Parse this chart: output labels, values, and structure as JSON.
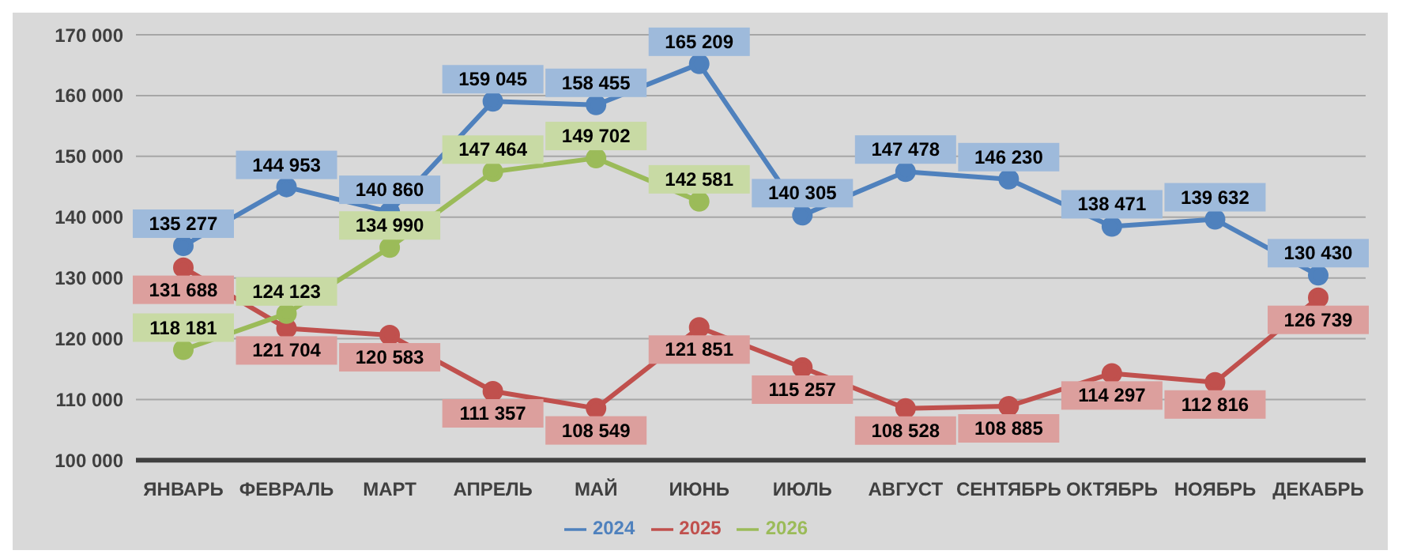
{
  "chart_data": {
    "type": "line",
    "categories": [
      "ЯНВАРЬ",
      "ФЕВРАЛЬ",
      "МАРТ",
      "АПРЕЛЬ",
      "МАЙ",
      "ИЮНЬ",
      "ИЮЛЬ",
      "АВГУСТ",
      "СЕНТЯБРЬ",
      "ОКТЯБРЬ",
      "НОЯБРЬ",
      "ДЕКАБРЬ"
    ],
    "series": [
      {
        "name": "2024",
        "color": "#4f81bd",
        "values": [
          135277,
          144953,
          140860,
          159045,
          158455,
          165209,
          140305,
          147478,
          146230,
          138471,
          139632,
          130430
        ]
      },
      {
        "name": "2025",
        "color": "#c0504d",
        "values": [
          131688,
          121704,
          120583,
          111357,
          108549,
          121851,
          115257,
          108528,
          108885,
          114297,
          112816,
          126739
        ]
      },
      {
        "name": "2026",
        "color": "#9bbb59",
        "values": [
          118181,
          124123,
          134990,
          147464,
          149702,
          142581,
          null,
          null,
          null,
          null,
          null,
          null
        ]
      }
    ],
    "ylim": [
      100000,
      170000
    ],
    "yticks": [
      {
        "value": 100000,
        "label": "100 000"
      },
      {
        "value": 110000,
        "label": "110 000"
      },
      {
        "value": 120000,
        "label": "120 000"
      },
      {
        "value": 130000,
        "label": "130 000"
      },
      {
        "value": 140000,
        "label": "140 000"
      },
      {
        "value": 150000,
        "label": "150 000"
      },
      {
        "value": 160000,
        "label": "160 000"
      },
      {
        "value": 170000,
        "label": "170 000"
      }
    ],
    "grid": "y",
    "legend": "bottom",
    "marker": "circle",
    "line_style": "solid",
    "data_labels": true
  }
}
